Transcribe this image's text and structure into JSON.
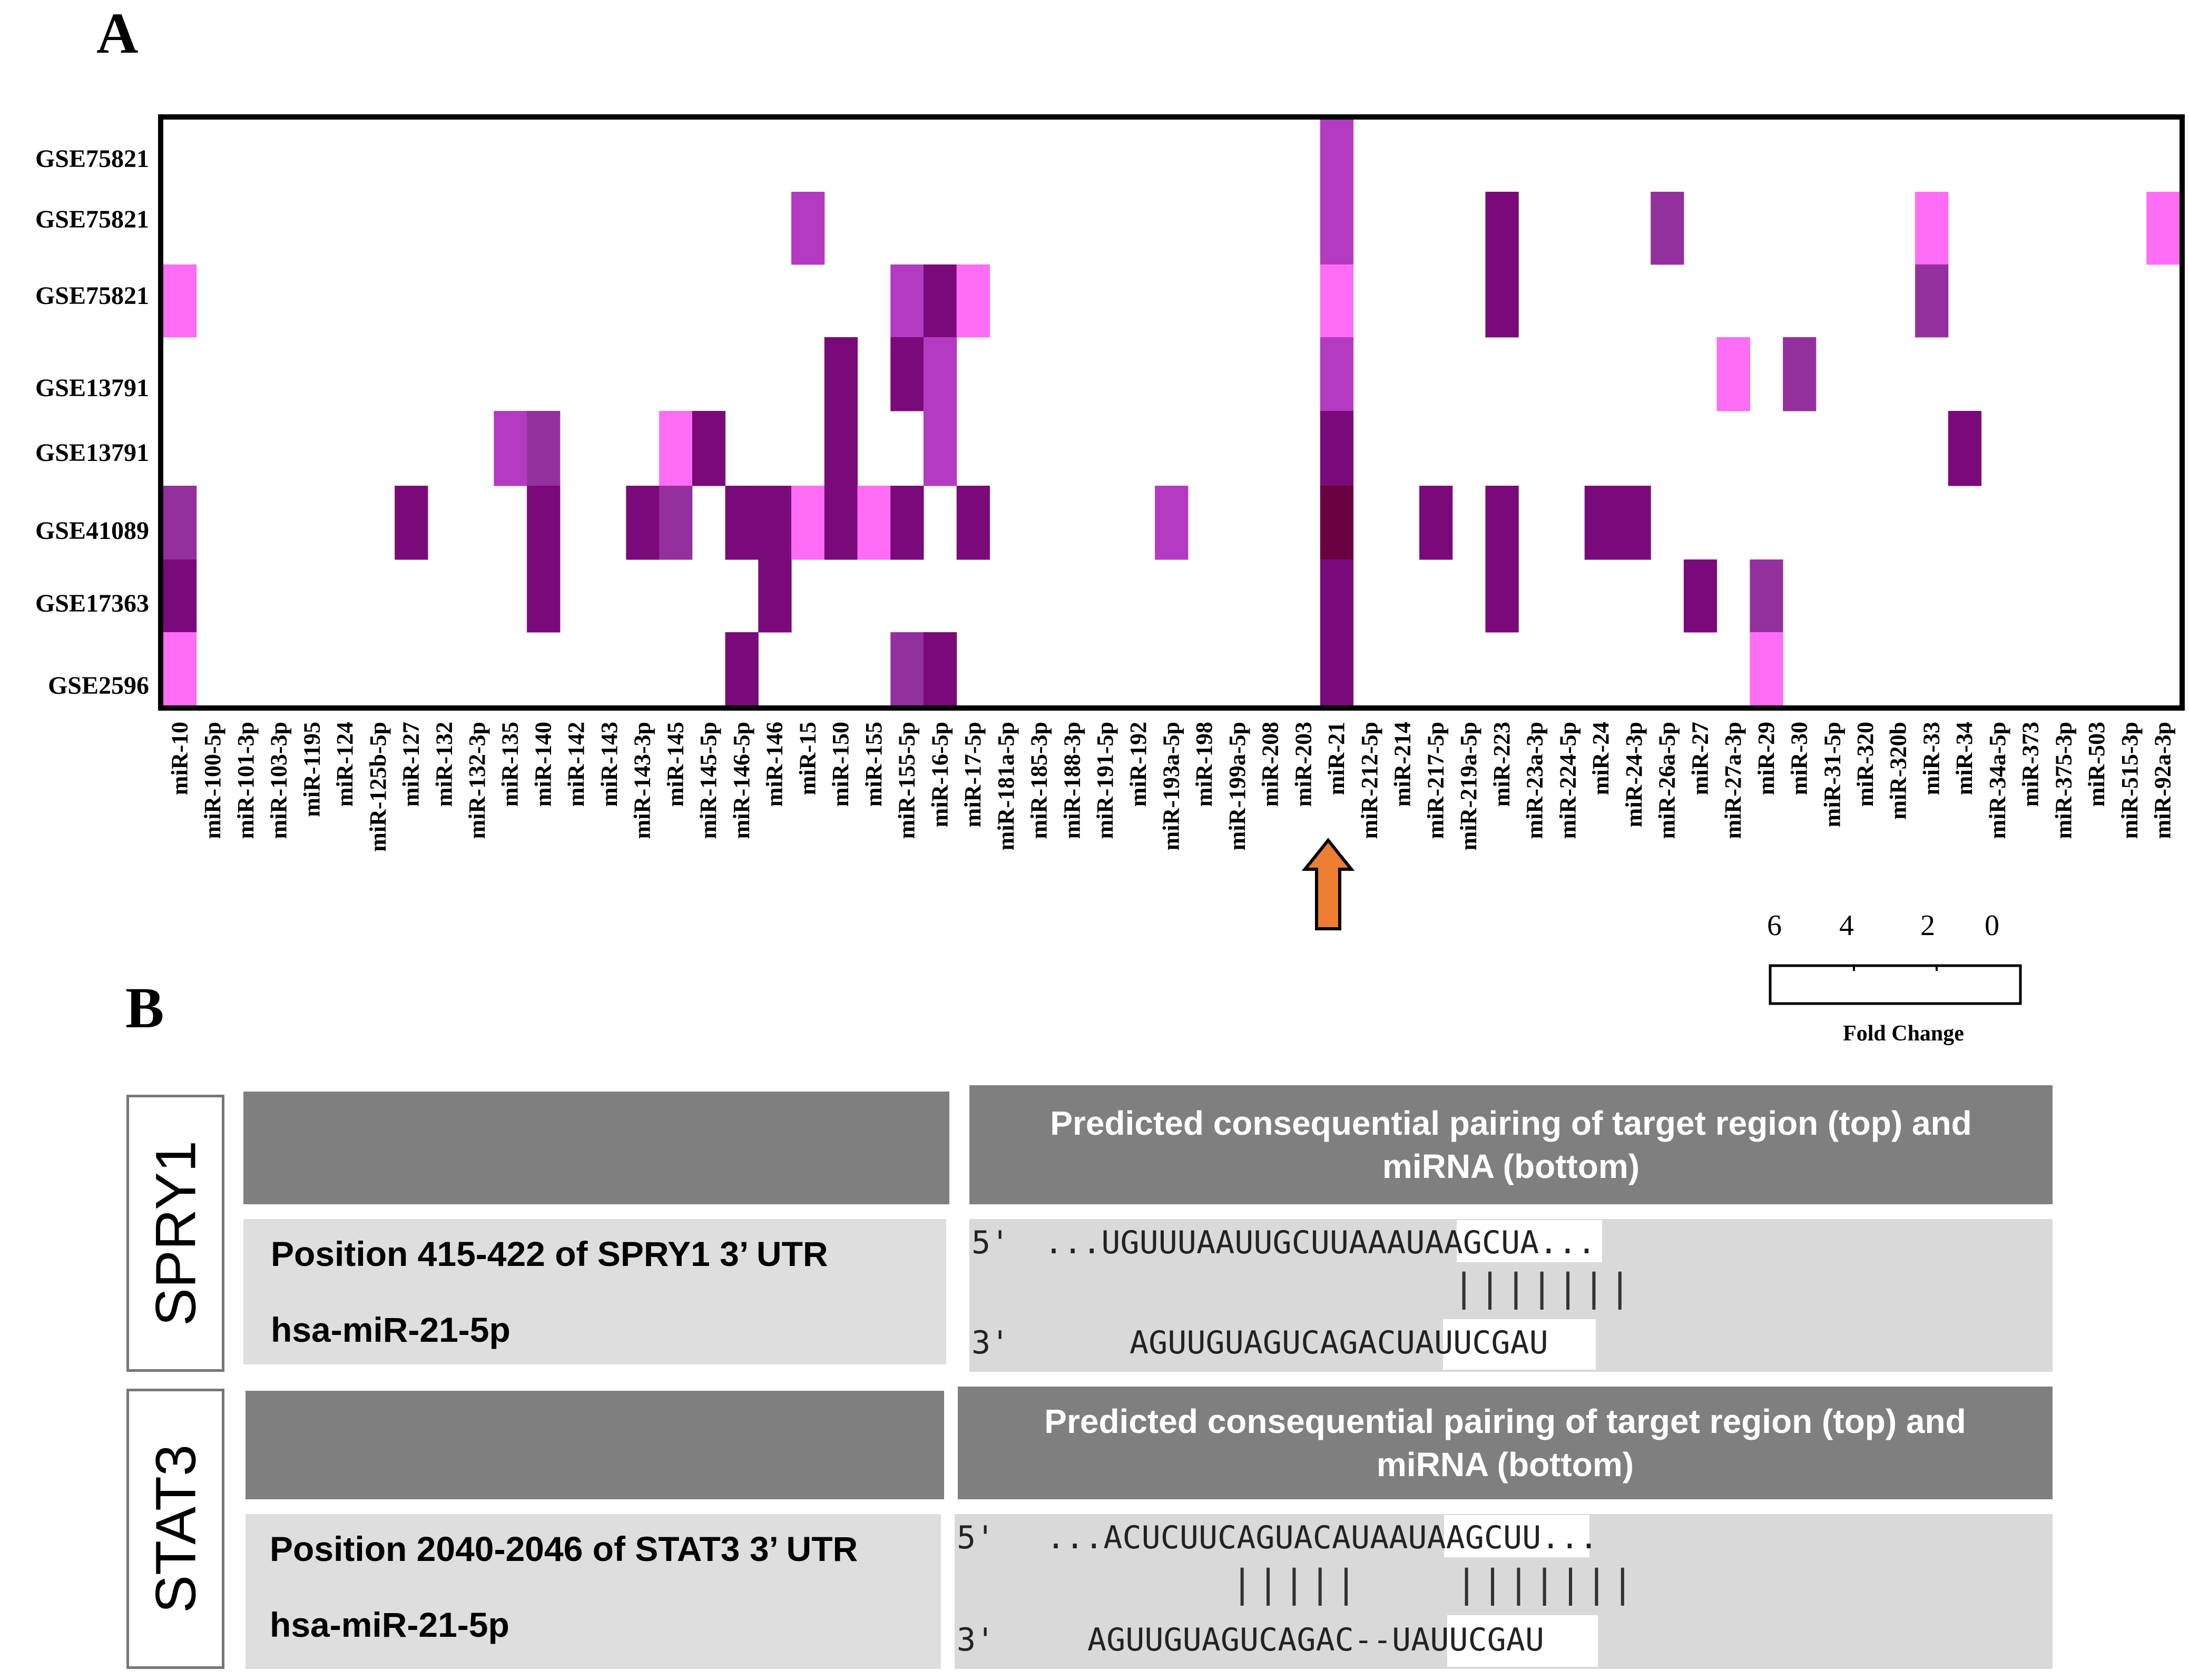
{
  "panels": {
    "a": "A",
    "b": "B"
  },
  "chart_data": {
    "type": "heatmap",
    "rows": [
      "GSE75821",
      "GSE75821",
      "GSE75821",
      "GSE13791",
      "GSE13791",
      "GSE41089",
      "GSE17363",
      "GSE2596"
    ],
    "columns": [
      "miR-10",
      "miR-100-5p",
      "miR-101-3p",
      "miR-103-3p",
      "miR-1195",
      "miR-124",
      "miR-125b-5p",
      "miR-127",
      "miR-132",
      "miR-132-3p",
      "miR-135",
      "miR-140",
      "miR-142",
      "miR-143",
      "miR-143-3p",
      "miR-145",
      "miR-145-5p",
      "miR-146-5p",
      "miR-146",
      "miR-15",
      "miR-150",
      "miR-155",
      "miR-155-5p",
      "miR-16-5p",
      "miR-17-5p",
      "miR-181a-5p",
      "miR-185-3p",
      "miR-188-3p",
      "miR-191-5p",
      "miR-192",
      "miR-193a-5p",
      "miR-198",
      "miR-199a-5p",
      "miR-208",
      "miR-203",
      "miR-21",
      "miR-212-5p",
      "miR-214",
      "miR-217-5p",
      "miR-219a-5p",
      "miR-223",
      "miR-23a-3p",
      "miR-224-5p",
      "miR-24",
      "miR-24-3p",
      "miR-26a-5p",
      "miR-27",
      "miR-27a-3p",
      "miR-29",
      "miR-30",
      "miR-31-5p",
      "miR-320",
      "miR-320b",
      "miR-33",
      "miR-34",
      "miR-34a-5p",
      "miR-373",
      "miR-375-3p",
      "miR-503",
      "miR-515-3p",
      "miR-92a-3p"
    ],
    "cells": [
      {
        "row": 0,
        "col": 35,
        "value": 3.5
      },
      {
        "row": 1,
        "col": 19,
        "value": 3.0
      },
      {
        "row": 1,
        "col": 35,
        "value": 3.0
      },
      {
        "row": 1,
        "col": 40,
        "value": 6.0
      },
      {
        "row": 1,
        "col": 45,
        "value": 4.0
      },
      {
        "row": 1,
        "col": 53,
        "value": 1.5
      },
      {
        "row": 1,
        "col": 60,
        "value": 2.0
      },
      {
        "row": 2,
        "col": 0,
        "value": 1.5
      },
      {
        "row": 2,
        "col": 22,
        "value": 3.5
      },
      {
        "row": 2,
        "col": 23,
        "value": 6.5
      },
      {
        "row": 2,
        "col": 24,
        "value": 1.5
      },
      {
        "row": 2,
        "col": 35,
        "value": 1.5
      },
      {
        "row": 2,
        "col": 40,
        "value": 6.0
      },
      {
        "row": 2,
        "col": 53,
        "value": 4.5
      },
      {
        "row": 3,
        "col": 20,
        "value": 6.0
      },
      {
        "row": 3,
        "col": 22,
        "value": 6.0
      },
      {
        "row": 3,
        "col": 23,
        "value": 3.5
      },
      {
        "row": 3,
        "col": 35,
        "value": 3.0
      },
      {
        "row": 3,
        "col": 47,
        "value": 1.5
      },
      {
        "row": 3,
        "col": 49,
        "value": 4.5
      },
      {
        "row": 4,
        "col": 10,
        "value": 3.5
      },
      {
        "row": 4,
        "col": 11,
        "value": 4.0
      },
      {
        "row": 4,
        "col": 15,
        "value": 2.0
      },
      {
        "row": 4,
        "col": 16,
        "value": 6.0
      },
      {
        "row": 4,
        "col": 20,
        "value": 6.0
      },
      {
        "row": 4,
        "col": 23,
        "value": 3.5
      },
      {
        "row": 4,
        "col": 35,
        "value": 6.0
      },
      {
        "row": 4,
        "col": 54,
        "value": 6.0
      },
      {
        "row": 5,
        "col": 0,
        "value": 4.0
      },
      {
        "row": 5,
        "col": 7,
        "value": 6.0
      },
      {
        "row": 5,
        "col": 11,
        "value": 6.0
      },
      {
        "row": 5,
        "col": 14,
        "value": 5.5
      },
      {
        "row": 5,
        "col": 15,
        "value": 4.5
      },
      {
        "row": 5,
        "col": 17,
        "value": 6.0
      },
      {
        "row": 5,
        "col": 18,
        "value": 6.0
      },
      {
        "row": 5,
        "col": 19,
        "value": 1.5
      },
      {
        "row": 5,
        "col": 20,
        "value": 5.5
      },
      {
        "row": 5,
        "col": 21,
        "value": 2.5
      },
      {
        "row": 5,
        "col": 22,
        "value": 6.5
      },
      {
        "row": 5,
        "col": 24,
        "value": 6.0
      },
      {
        "row": 5,
        "col": 30,
        "value": 3.5
      },
      {
        "row": 5,
        "col": 35,
        "value": 7.0
      },
      {
        "row": 5,
        "col": 38,
        "value": 6.0
      },
      {
        "row": 5,
        "col": 40,
        "value": 6.0
      },
      {
        "row": 5,
        "col": 43,
        "value": 6.0
      },
      {
        "row": 5,
        "col": 44,
        "value": 6.0
      },
      {
        "row": 6,
        "col": 0,
        "value": 6.0
      },
      {
        "row": 6,
        "col": 11,
        "value": 6.0
      },
      {
        "row": 6,
        "col": 18,
        "value": 6.0
      },
      {
        "row": 6,
        "col": 35,
        "value": 6.0
      },
      {
        "row": 6,
        "col": 40,
        "value": 6.0
      },
      {
        "row": 6,
        "col": 46,
        "value": 6.0
      },
      {
        "row": 6,
        "col": 48,
        "value": 4.0
      },
      {
        "row": 7,
        "col": 0,
        "value": 2.5
      },
      {
        "row": 7,
        "col": 17,
        "value": 6.0
      },
      {
        "row": 7,
        "col": 22,
        "value": 4.5
      },
      {
        "row": 7,
        "col": 23,
        "value": 6.5
      },
      {
        "row": 7,
        "col": 35,
        "value": 6.0
      },
      {
        "row": 7,
        "col": 48,
        "value": 1.5
      }
    ],
    "colorbar": {
      "title": "Fold Change",
      "ticks": [
        "6",
        "4",
        "2",
        "0"
      ]
    },
    "highlight_column": "miR-21",
    "colors": {
      "low": "#ff6cf5",
      "mid": "#b43ac1",
      "high": "#7a0a7a",
      "max": "#6a0040",
      "arrow": "#ed7d31"
    }
  },
  "pairings": [
    {
      "gene": "SPRY1",
      "header": "Predicted consequential pairing of target region (top) and miRNA (bottom)",
      "position": "Position 415-422 of SPRY1 3’ UTR",
      "mirna": "hsa-miR-21-5p",
      "prime5": "5'",
      "top_seq_pre": "...UGUUUAAUUGCUUAA",
      "top_seq_site": "AUAAGCUA",
      "top_seq_post": "...",
      "pipes": "|||||||",
      "prime3": "3'",
      "bottom_seq_pre": "AGUUGUAGUCAGAC",
      "bottom_seq_site": "UAUUCGAU"
    },
    {
      "gene": "STAT3",
      "header": "Predicted consequential pairing of target region (top) and miRNA (bottom)",
      "position": "Position 2040-2046 of STAT3 3’ UTR",
      "mirna": "hsa-miR-21-5p",
      "prime5": "5'",
      "top_seq_pre": "...ACUCUUCAGUACAUA",
      "top_seq_site": "AUAAGCUU",
      "top_seq_post": "...",
      "pipes_left": "|||||",
      "pipes": "|||||||",
      "prime3": "3'",
      "bottom_seq_pre": "AGUUGUAGUCAGAC--",
      "bottom_seq_site": "UAUUCGAU"
    }
  ]
}
